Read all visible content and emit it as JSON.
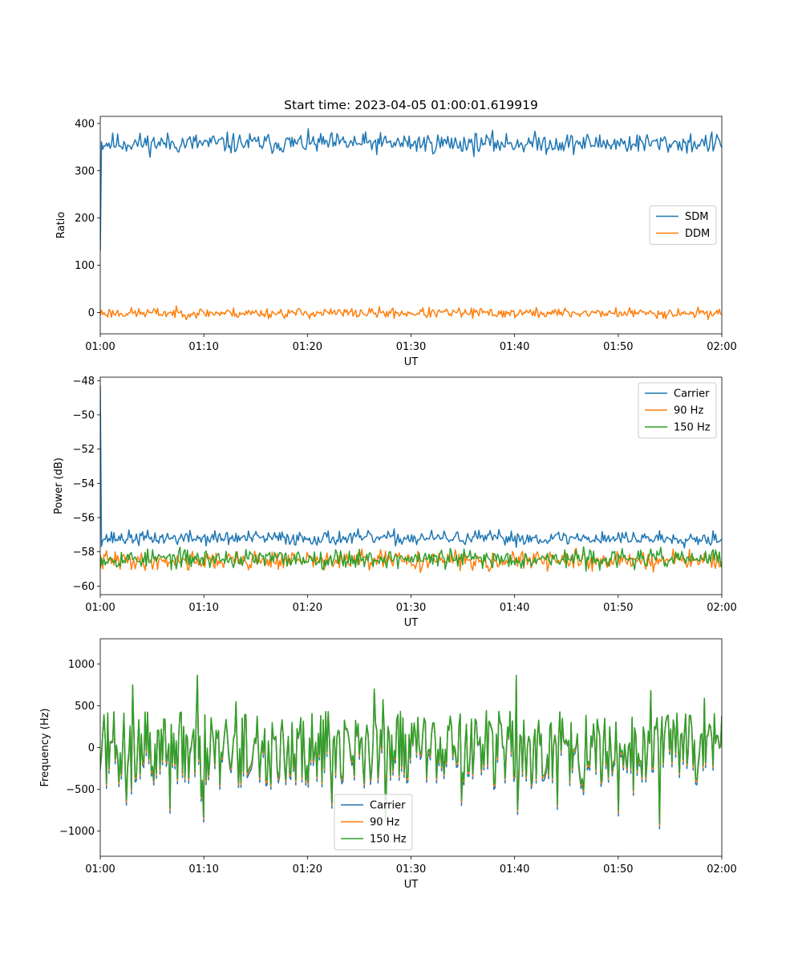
{
  "chart_data": [
    {
      "type": "line",
      "title": "Start time: 2023-04-05 01:00:01.619919",
      "xlabel": "UT",
      "ylabel": "Ratio",
      "x_range": [
        "01:00",
        "02:00"
      ],
      "x_ticks": [
        "01:00",
        "01:10",
        "01:20",
        "01:30",
        "01:40",
        "01:50",
        "02:00"
      ],
      "ylim": [
        -45,
        415
      ],
      "y_ticks": [
        0,
        100,
        200,
        300,
        400
      ],
      "grid": false,
      "legend_position": "center-right",
      "series": [
        {
          "name": "SDM",
          "color": "#1f77b4",
          "mean": 358,
          "noise": 18,
          "initial": 130,
          "seed": 11
        },
        {
          "name": "DDM",
          "color": "#ff7f0e",
          "mean": -1,
          "noise": 9,
          "seed": 23
        }
      ]
    },
    {
      "type": "line",
      "title": "",
      "xlabel": "UT",
      "ylabel": "Power (dB)",
      "x_range": [
        "01:00",
        "02:00"
      ],
      "x_ticks": [
        "01:00",
        "01:10",
        "01:20",
        "01:30",
        "01:40",
        "01:50",
        "02:00"
      ],
      "ylim": [
        -60.5,
        -47.8
      ],
      "y_ticks": [
        -60,
        -58,
        -56,
        -54,
        -52,
        -50,
        -48
      ],
      "y_tick_labels": [
        "−60",
        "−58",
        "−56",
        "−54",
        "−52",
        "−50",
        "−48"
      ],
      "grid": false,
      "legend_position": "top-right",
      "series": [
        {
          "name": "Carrier",
          "color": "#1f77b4",
          "mean": -57.2,
          "noise": 0.35,
          "initial": -48.3,
          "seed": 37
        },
        {
          "name": "90 Hz",
          "color": "#ff7f0e",
          "mean": -58.5,
          "noise": 0.45,
          "seed": 41
        },
        {
          "name": "150 Hz",
          "color": "#2ca02c",
          "mean": -58.4,
          "noise": 0.45,
          "seed": 53
        }
      ]
    },
    {
      "type": "line",
      "title": "",
      "xlabel": "UT",
      "ylabel": "Frequency (Hz)",
      "x_range": [
        "01:00",
        "02:00"
      ],
      "x_ticks": [
        "01:00",
        "01:10",
        "01:20",
        "01:30",
        "01:40",
        "01:50",
        "02:00"
      ],
      "ylim": [
        -1300,
        1300
      ],
      "y_ticks": [
        -1000,
        -500,
        0,
        500,
        1000
      ],
      "y_tick_labels": [
        "−1000",
        "−500",
        "0",
        "500",
        "1000"
      ],
      "grid": false,
      "legend_position": "bottom-center",
      "series": [
        {
          "name": "Carrier",
          "color": "#1f77b4",
          "mean": 0,
          "noise": 400,
          "seed": 71,
          "offset": -60
        },
        {
          "name": "90 Hz",
          "color": "#ff7f0e",
          "mean": 0,
          "noise": 400,
          "seed": 71,
          "offset": -25
        },
        {
          "name": "150 Hz",
          "color": "#2ca02c",
          "mean": 0,
          "noise": 400,
          "seed": 71,
          "offset": 0
        }
      ]
    }
  ]
}
